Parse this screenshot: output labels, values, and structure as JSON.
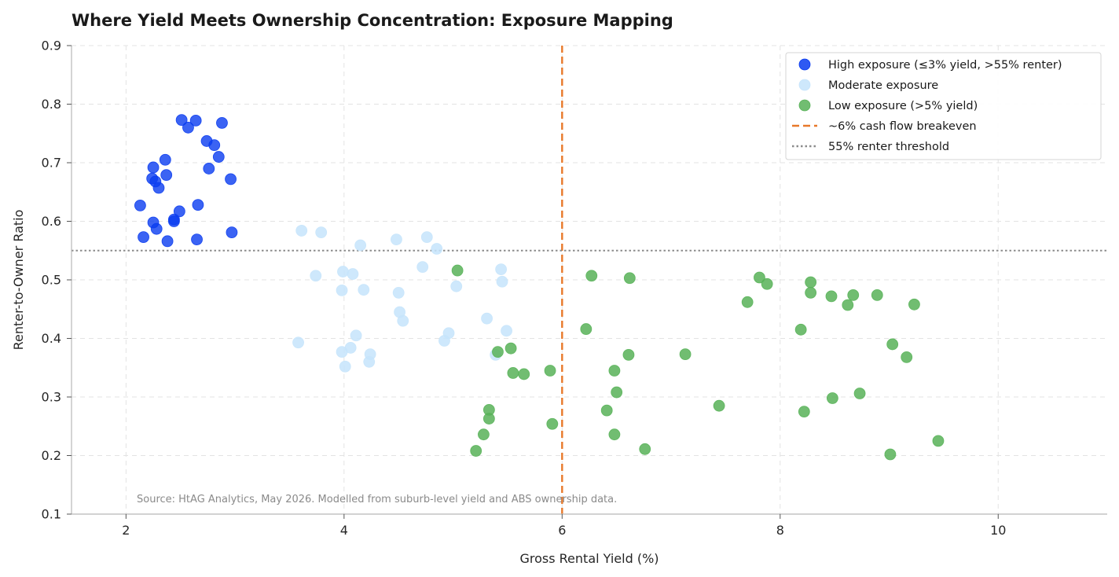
{
  "chart_data": {
    "type": "scatter",
    "title": "Where Yield Meets Ownership Concentration: Exposure Mapping",
    "xlabel": "Gross Rental Yield (%)",
    "ylabel": "Renter-to-Owner Ratio",
    "xlim": [
      1.5,
      11.0
    ],
    "ylim": [
      0.1,
      0.9
    ],
    "xticks": [
      2,
      4,
      6,
      8,
      10
    ],
    "yticks": [
      0.1,
      0.2,
      0.3,
      0.4,
      0.5,
      0.6,
      0.7,
      0.8,
      0.9
    ],
    "grid": true,
    "legend_position": "top-right",
    "source_note": "Source: HtAG Analytics, May 2026. Modelled from suburb-level yield and ABS ownership data.",
    "series": [
      {
        "name": "High exposure (≤3% yield, >55% renter)",
        "color": "#0a3cf0",
        "points": [
          [
            2.51,
            0.773
          ],
          [
            2.64,
            0.772
          ],
          [
            2.88,
            0.768
          ],
          [
            2.57,
            0.76
          ],
          [
            2.74,
            0.737
          ],
          [
            2.81,
            0.73
          ],
          [
            2.85,
            0.71
          ],
          [
            2.36,
            0.705
          ],
          [
            2.76,
            0.69
          ],
          [
            2.25,
            0.692
          ],
          [
            2.37,
            0.679
          ],
          [
            2.24,
            0.673
          ],
          [
            2.96,
            0.672
          ],
          [
            2.27,
            0.668
          ],
          [
            2.3,
            0.657
          ],
          [
            2.13,
            0.627
          ],
          [
            2.66,
            0.628
          ],
          [
            2.49,
            0.617
          ],
          [
            2.44,
            0.603
          ],
          [
            2.44,
            0.6
          ],
          [
            2.25,
            0.598
          ],
          [
            2.28,
            0.587
          ],
          [
            2.97,
            0.581
          ],
          [
            2.16,
            0.573
          ],
          [
            2.65,
            0.569
          ],
          [
            2.38,
            0.566
          ]
        ]
      },
      {
        "name": "Moderate exposure",
        "color": "#c6e4fb",
        "points": [
          [
            3.61,
            0.584
          ],
          [
            3.79,
            0.581
          ],
          [
            4.76,
            0.573
          ],
          [
            4.48,
            0.569
          ],
          [
            4.15,
            0.559
          ],
          [
            4.85,
            0.553
          ],
          [
            4.72,
            0.522
          ],
          [
            5.44,
            0.518
          ],
          [
            3.99,
            0.514
          ],
          [
            4.08,
            0.51
          ],
          [
            3.74,
            0.507
          ],
          [
            5.45,
            0.497
          ],
          [
            5.03,
            0.489
          ],
          [
            4.18,
            0.483
          ],
          [
            3.98,
            0.482
          ],
          [
            4.5,
            0.478
          ],
          [
            4.51,
            0.445
          ],
          [
            5.31,
            0.434
          ],
          [
            4.54,
            0.43
          ],
          [
            5.49,
            0.413
          ],
          [
            4.96,
            0.409
          ],
          [
            4.11,
            0.405
          ],
          [
            4.92,
            0.396
          ],
          [
            3.58,
            0.393
          ],
          [
            4.06,
            0.384
          ],
          [
            3.98,
            0.377
          ],
          [
            4.24,
            0.373
          ],
          [
            5.39,
            0.372
          ],
          [
            4.23,
            0.36
          ],
          [
            4.01,
            0.352
          ]
        ]
      },
      {
        "name": "Low exposure (>5% yield)",
        "color": "#58b258",
        "points": [
          [
            5.04,
            0.516
          ],
          [
            6.27,
            0.507
          ],
          [
            6.62,
            0.503
          ],
          [
            7.81,
            0.504
          ],
          [
            8.28,
            0.496
          ],
          [
            7.88,
            0.493
          ],
          [
            8.28,
            0.478
          ],
          [
            8.67,
            0.474
          ],
          [
            8.89,
            0.474
          ],
          [
            8.47,
            0.472
          ],
          [
            7.7,
            0.462
          ],
          [
            9.23,
            0.458
          ],
          [
            8.62,
            0.457
          ],
          [
            6.22,
            0.416
          ],
          [
            8.19,
            0.415
          ],
          [
            9.03,
            0.39
          ],
          [
            5.53,
            0.383
          ],
          [
            5.41,
            0.377
          ],
          [
            7.13,
            0.373
          ],
          [
            6.61,
            0.372
          ],
          [
            9.16,
            0.368
          ],
          [
            5.89,
            0.345
          ],
          [
            6.48,
            0.345
          ],
          [
            5.55,
            0.341
          ],
          [
            5.65,
            0.339
          ],
          [
            6.5,
            0.308
          ],
          [
            8.73,
            0.306
          ],
          [
            8.48,
            0.298
          ],
          [
            7.44,
            0.285
          ],
          [
            5.33,
            0.278
          ],
          [
            6.41,
            0.277
          ],
          [
            8.22,
            0.275
          ],
          [
            5.33,
            0.263
          ],
          [
            5.91,
            0.254
          ],
          [
            5.28,
            0.236
          ],
          [
            6.48,
            0.236
          ],
          [
            9.45,
            0.225
          ],
          [
            6.76,
            0.211
          ],
          [
            5.21,
            0.208
          ],
          [
            9.01,
            0.202
          ]
        ]
      }
    ],
    "reference_lines": [
      {
        "name": "~6% cash flow breakeven",
        "axis": "x",
        "value": 6,
        "color": "#e8792a",
        "style": "dashed"
      },
      {
        "name": "55% renter threshold",
        "axis": "y",
        "value": 0.55,
        "color": "#8c8c8c",
        "style": "dotted"
      }
    ]
  }
}
